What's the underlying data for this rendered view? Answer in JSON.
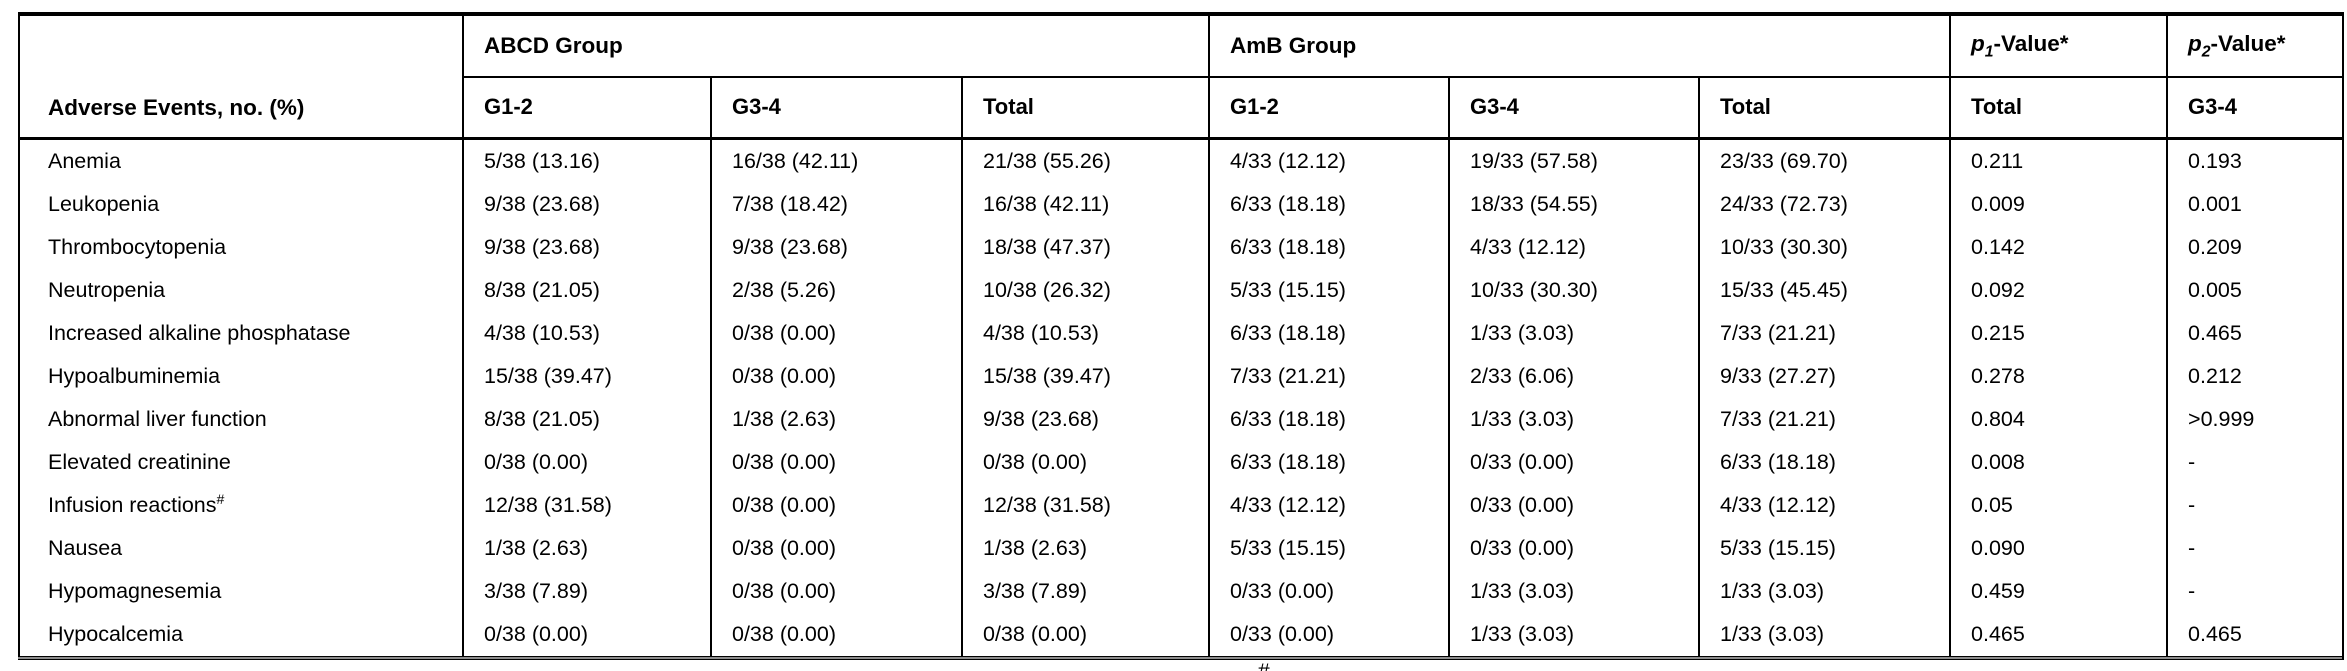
{
  "colors": {
    "text": "#000000",
    "border": "#000000",
    "background": "#ffffff",
    "thin_rule": "#8c8c8c"
  },
  "table": {
    "corner_header": "Adverse Events, no. (%)",
    "groups": [
      {
        "label": "ABCD Group"
      },
      {
        "label": "AmB Group"
      }
    ],
    "p_headers": [
      {
        "prefix": "p",
        "sub": "1",
        "suffix": "-Value*"
      },
      {
        "prefix": "p",
        "sub": "2",
        "suffix": "-Value*"
      }
    ],
    "subheaders": [
      "G1-2",
      "G3-4",
      "Total",
      "G1-2",
      "G3-4",
      "Total",
      "Total",
      "G3-4"
    ],
    "rows": [
      {
        "event": "Anemia",
        "sup": "",
        "cells": [
          "5/38 (13.16)",
          "16/38 (42.11)",
          "21/38 (55.26)",
          "4/33 (12.12)",
          "19/33 (57.58)",
          "23/33 (69.70)",
          "0.211",
          "0.193"
        ]
      },
      {
        "event": "Leukopenia",
        "sup": "",
        "cells": [
          "9/38 (23.68)",
          "7/38 (18.42)",
          "16/38 (42.11)",
          "6/33 (18.18)",
          "18/33 (54.55)",
          "24/33 (72.73)",
          "0.009",
          "0.001"
        ]
      },
      {
        "event": "Thrombocytopenia",
        "sup": "",
        "cells": [
          "9/38 (23.68)",
          "9/38 (23.68)",
          "18/38 (47.37)",
          "6/33 (18.18)",
          "4/33 (12.12)",
          "10/33 (30.30)",
          "0.142",
          "0.209"
        ]
      },
      {
        "event": "Neutropenia",
        "sup": "",
        "cells": [
          "8/38 (21.05)",
          "2/38 (5.26)",
          "10/38 (26.32)",
          "5/33 (15.15)",
          "10/33 (30.30)",
          "15/33 (45.45)",
          "0.092",
          "0.005"
        ]
      },
      {
        "event": "Increased alkaline phosphatase",
        "sup": "",
        "cells": [
          "4/38 (10.53)",
          "0/38 (0.00)",
          "4/38 (10.53)",
          "6/33 (18.18)",
          "1/33 (3.03)",
          "7/33 (21.21)",
          "0.215",
          "0.465"
        ]
      },
      {
        "event": "Hypoalbuminemia",
        "sup": "",
        "cells": [
          "15/38 (39.47)",
          "0/38 (0.00)",
          "15/38 (39.47)",
          "7/33 (21.21)",
          "2/33 (6.06)",
          "9/33 (27.27)",
          "0.278",
          "0.212"
        ]
      },
      {
        "event": "Abnormal liver function",
        "sup": "",
        "cells": [
          "8/38 (21.05)",
          "1/38 (2.63)",
          "9/38 (23.68)",
          "6/33 (18.18)",
          "1/33 (3.03)",
          "7/33 (21.21)",
          "0.804",
          ">0.999"
        ]
      },
      {
        "event": "Elevated creatinine",
        "sup": "",
        "cells": [
          "0/38 (0.00)",
          "0/38 (0.00)",
          "0/38 (0.00)",
          "6/33 (18.18)",
          "0/33 (0.00)",
          "6/33 (18.18)",
          "0.008",
          "-"
        ]
      },
      {
        "event": "Infusion reactions",
        "sup": "#",
        "cells": [
          "12/38 (31.58)",
          "0/38 (0.00)",
          "12/38 (31.58)",
          "4/33 (12.12)",
          "0/33 (0.00)",
          "4/33 (12.12)",
          "0.05",
          "-"
        ]
      },
      {
        "event": "Nausea",
        "sup": "",
        "cells": [
          "1/38 (2.63)",
          "0/38 (0.00)",
          "1/38 (2.63)",
          "5/33 (15.15)",
          "0/33 (0.00)",
          "5/33 (15.15)",
          "0.090",
          "-"
        ]
      },
      {
        "event": "Hypomagnesemia",
        "sup": "",
        "cells": [
          "3/38 (7.89)",
          "0/38 (0.00)",
          "3/38 (7.89)",
          "0/33 (0.00)",
          "1/33 (3.03)",
          "1/33 (3.03)",
          "0.459",
          "-"
        ]
      },
      {
        "event": "Hypocalcemia",
        "sup": "",
        "cells": [
          "0/38 (0.00)",
          "0/38 (0.00)",
          "0/38 (0.00)",
          "0/33 (0.00)",
          "1/33 (3.03)",
          "1/33 (3.03)",
          "0.465",
          "0.465"
        ]
      }
    ],
    "footnote_marker": "#"
  }
}
